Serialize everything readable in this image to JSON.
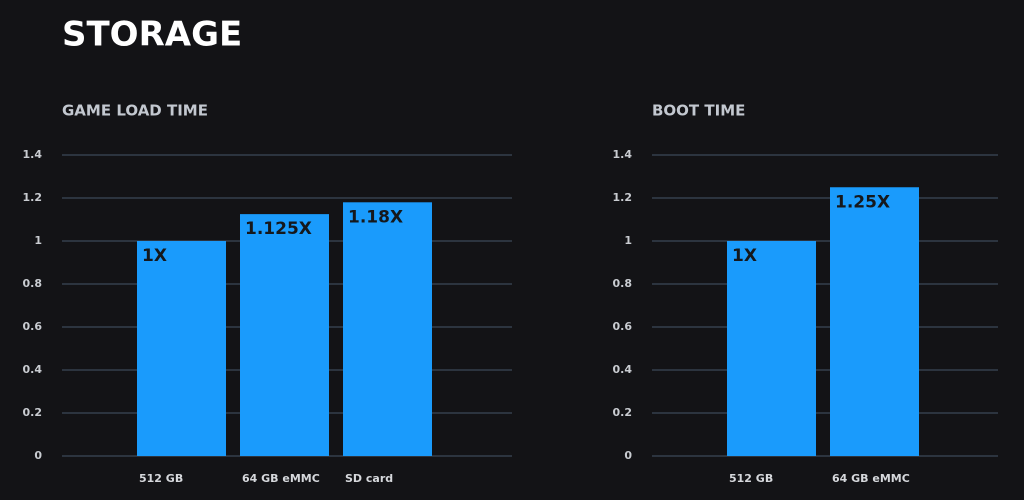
{
  "title": "STORAGE",
  "chart_data": [
    {
      "type": "bar",
      "title": "GAME LOAD TIME",
      "categories": [
        "512 GB",
        "64 GB eMMC",
        "SD card"
      ],
      "values": [
        1,
        1.125,
        1.18
      ],
      "value_labels": [
        "1X",
        "1.125X",
        "1.18X"
      ],
      "color": "#1a9bfc",
      "ylim": [
        0,
        1.4
      ],
      "yticks": [
        0,
        0.2,
        0.4,
        0.6,
        0.8,
        1,
        1.2,
        1.4
      ],
      "grid": true
    },
    {
      "type": "bar",
      "title": "BOOT TIME",
      "categories": [
        "512 GB",
        "64 GB eMMC"
      ],
      "values": [
        1,
        1.25
      ],
      "value_labels": [
        "1X",
        "1.25X"
      ],
      "color": "#1a9bfc",
      "ylim": [
        0,
        1.4
      ],
      "yticks": [
        0,
        0.2,
        0.4,
        0.6,
        0.8,
        1,
        1.2,
        1.4
      ],
      "grid": true
    }
  ]
}
